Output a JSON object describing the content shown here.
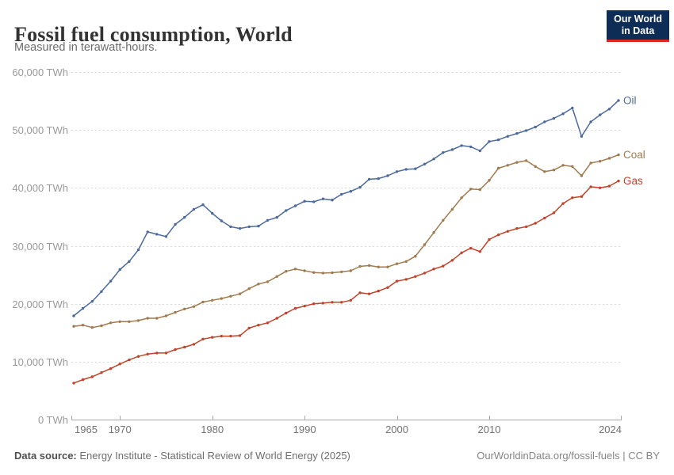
{
  "header": {
    "title": "Fossil fuel consumption, World",
    "subtitle": "Measured in terawatt-hours.",
    "logo": {
      "line1": "Our World",
      "line2": "in Data",
      "bg_color": "#0D2D56",
      "accent_color": "#E02721"
    }
  },
  "footer": {
    "source_label": "Data source:",
    "source_text": " Energy Institute - Statistical Review of World Energy (2025)",
    "url_text": "OurWorldinData.org/fossil-fuels",
    "separator": " | ",
    "license_text": "CC BY"
  },
  "chart_data": {
    "type": "line",
    "title": "Fossil fuel consumption, World",
    "subtitle": "Measured in terawatt-hours.",
    "xlabel": "",
    "ylabel": "TWh",
    "xlim": [
      1965,
      2024
    ],
    "ylim": [
      0,
      60000
    ],
    "grid": "dashed-horizontal",
    "legend_position": "end-of-line-labels",
    "marker": "dot",
    "x_ticks": [
      1965,
      1970,
      1980,
      1990,
      2000,
      2010,
      2024
    ],
    "y_ticks": [
      {
        "value": 0,
        "label": "0 TWh"
      },
      {
        "value": 10000,
        "label": "10,000 TWh"
      },
      {
        "value": 20000,
        "label": "20,000 TWh"
      },
      {
        "value": 30000,
        "label": "30,000 TWh"
      },
      {
        "value": 40000,
        "label": "40,000 TWh"
      },
      {
        "value": 50000,
        "label": "50,000 TWh"
      },
      {
        "value": 60000,
        "label": "60,000 TWh"
      }
    ],
    "x": [
      1965,
      1966,
      1967,
      1968,
      1969,
      1970,
      1971,
      1972,
      1973,
      1974,
      1975,
      1976,
      1977,
      1978,
      1979,
      1980,
      1981,
      1982,
      1983,
      1984,
      1985,
      1986,
      1987,
      1988,
      1989,
      1990,
      1991,
      1992,
      1993,
      1994,
      1995,
      1996,
      1997,
      1998,
      1999,
      2000,
      2001,
      2002,
      2003,
      2004,
      2005,
      2006,
      2007,
      2008,
      2009,
      2010,
      2011,
      2012,
      2013,
      2014,
      2015,
      2016,
      2017,
      2018,
      2019,
      2020,
      2021,
      2022,
      2023,
      2024
    ],
    "series": [
      {
        "name": "Oil",
        "color": "#4C6A9C",
        "values": [
          17900,
          19200,
          20400,
          22100,
          23900,
          25900,
          27300,
          29300,
          32400,
          32000,
          31600,
          33700,
          34900,
          36300,
          37100,
          35600,
          34300,
          33300,
          33000,
          33300,
          33400,
          34400,
          34900,
          36100,
          36900,
          37700,
          37600,
          38100,
          37900,
          38900,
          39400,
          40100,
          41500,
          41600,
          42100,
          42800,
          43200,
          43300,
          44100,
          45000,
          46100,
          46600,
          47300,
          47100,
          46400,
          48000,
          48300,
          48900,
          49400,
          49900,
          50500,
          51400,
          52000,
          52800,
          53800,
          48900,
          51400,
          52600,
          53600,
          55100
        ]
      },
      {
        "name": "Coal",
        "color": "#A07B4F",
        "values": [
          16100,
          16300,
          15900,
          16200,
          16700,
          16900,
          16900,
          17100,
          17500,
          17500,
          17900,
          18500,
          19100,
          19500,
          20300,
          20600,
          20900,
          21300,
          21700,
          22600,
          23400,
          23800,
          24700,
          25600,
          26000,
          25700,
          25400,
          25300,
          25350,
          25500,
          25700,
          26450,
          26600,
          26350,
          26350,
          26900,
          27300,
          28200,
          30200,
          32300,
          34400,
          36300,
          38300,
          39800,
          39700,
          41300,
          43400,
          43900,
          44400,
          44700,
          43700,
          42800,
          43100,
          43900,
          43700,
          42100,
          44300,
          44600,
          45100,
          45700
        ]
      },
      {
        "name": "Gas",
        "color": "#C1432B",
        "values": [
          6300,
          6900,
          7400,
          8100,
          8800,
          9600,
          10300,
          10900,
          11300,
          11500,
          11500,
          12100,
          12500,
          13000,
          13900,
          14200,
          14400,
          14400,
          14500,
          15800,
          16300,
          16700,
          17500,
          18400,
          19200,
          19600,
          20000,
          20100,
          20250,
          20250,
          20600,
          21900,
          21700,
          22200,
          22800,
          23900,
          24200,
          24700,
          25300,
          26000,
          26500,
          27500,
          28800,
          29600,
          29000,
          31100,
          31900,
          32500,
          33000,
          33300,
          33900,
          34800,
          35700,
          37300,
          38300,
          38500,
          40200,
          40000,
          40300,
          41200
        ]
      }
    ],
    "style": {
      "grid_color": "#D9D9D9",
      "axis_color": "#A8A8A8",
      "y_tick_label_color": "#9A9A9A",
      "x_tick_label_color": "#737373"
    }
  }
}
